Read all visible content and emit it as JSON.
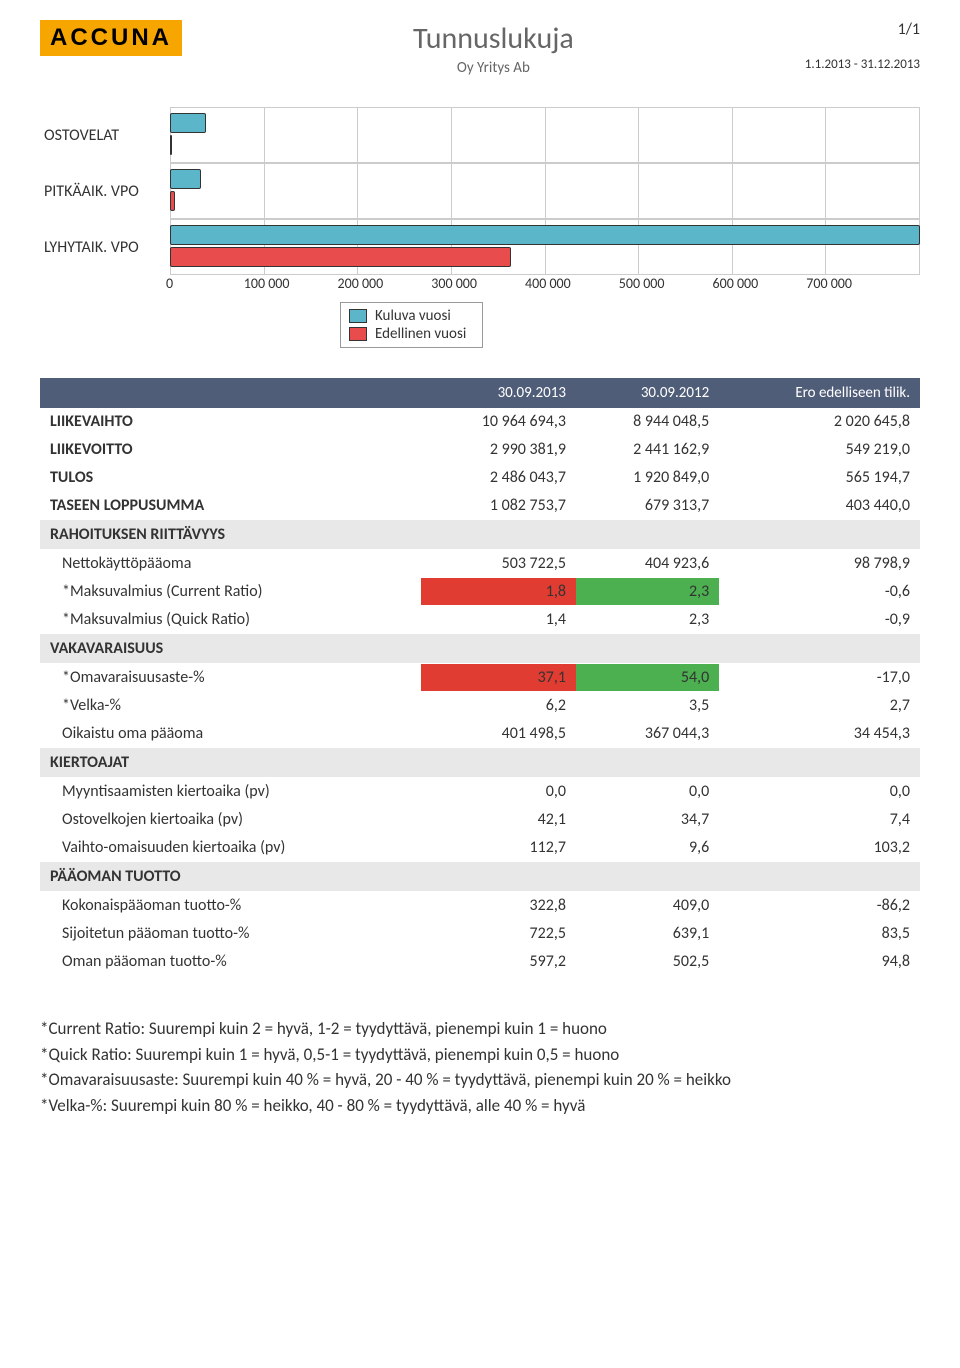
{
  "header": {
    "logo": "ACCUNA",
    "title": "Tunnuslukuja",
    "subtitle": "Oy Yritys Ab",
    "page": "1/1",
    "date_range": "1.1.2013 - 31.12.2013"
  },
  "chart": {
    "type": "bar",
    "categories": [
      "OSTOVELAT",
      "PITKÄAIK. VPO",
      "LYHYTAIK. VPO"
    ],
    "series": [
      {
        "name": "Kuluva vuosi",
        "color": "#5bb6c9",
        "values": [
          35000,
          30000,
          720000
        ]
      },
      {
        "name": "Edellinen vuosi",
        "color": "#e84c4c",
        "values": [
          0,
          5000,
          327000
        ]
      }
    ],
    "x_ticks": [
      "0",
      "100 000",
      "200 000",
      "300 000",
      "400 000",
      "500 000",
      "600 000",
      "700 000"
    ],
    "x_max": 720000,
    "grid_cells": 8,
    "bar_border": "#333333",
    "grid_color": "#cccccc"
  },
  "table": {
    "headers": [
      "",
      "30.09.2013",
      "30.09.2012",
      "Ero edelliseen tilik."
    ],
    "top_rows": [
      {
        "label": "LIIKEVAIHTO",
        "c1": "10 964 694,3",
        "c2": "8 944 048,5",
        "c3": "2 020 645,8"
      },
      {
        "label": "LIIKEVOITTO",
        "c1": "2 990 381,9",
        "c2": "2 441 162,9",
        "c3": "549 219,0"
      },
      {
        "label": "TULOS",
        "c1": "2 486 043,7",
        "c2": "1 920 849,0",
        "c3": "565 194,7"
      },
      {
        "label": "TASEEN LOPPUSUMMA",
        "c1": "1 082 753,7",
        "c2": "679 313,7",
        "c3": "403 440,0"
      }
    ],
    "sections": [
      {
        "title": "RAHOITUKSEN RIITTÄVYYS",
        "rows": [
          {
            "label": "Nettokäyttöpääoma",
            "c1": "503 722,5",
            "c2": "404 923,6",
            "c3": "98 798,9"
          },
          {
            "label": "*Maksuvalmius (Current Ratio)",
            "c1": "1,8",
            "c2": "2,3",
            "c3": "-0,6",
            "c1_color": "red",
            "c2_color": "green"
          },
          {
            "label": "*Maksuvalmius (Quick Ratio)",
            "c1": "1,4",
            "c2": "2,3",
            "c3": "-0,9"
          }
        ]
      },
      {
        "title": "VAKAVARAISUUS",
        "rows": [
          {
            "label": "*Omavaraisuusaste-%",
            "c1": "37,1",
            "c2": "54,0",
            "c3": "-17,0",
            "c1_color": "red",
            "c2_color": "green"
          },
          {
            "label": "*Velka-%",
            "c1": "6,2",
            "c2": "3,5",
            "c3": "2,7"
          },
          {
            "label": "Oikaistu oma pääoma",
            "c1": "401 498,5",
            "c2": "367 044,3",
            "c3": "34 454,3"
          }
        ]
      },
      {
        "title": "KIERTOAJAT",
        "rows": [
          {
            "label": "Myyntisaamisten kiertoaika (pv)",
            "c1": "0,0",
            "c2": "0,0",
            "c3": "0,0"
          },
          {
            "label": "Ostovelkojen kiertoaika (pv)",
            "c1": "42,1",
            "c2": "34,7",
            "c3": "7,4"
          },
          {
            "label": "Vaihto-omaisuuden kiertoaika (pv)",
            "c1": "112,7",
            "c2": "9,6",
            "c3": "103,2"
          }
        ]
      },
      {
        "title": "PÄÄOMAN TUOTTO",
        "rows": [
          {
            "label": "Kokonaispääoman tuotto-%",
            "c1": "322,8",
            "c2": "409,0",
            "c3": "-86,2"
          },
          {
            "label": "Sijoitetun pääoman tuotto-%",
            "c1": "722,5",
            "c2": "639,1",
            "c3": "83,5"
          },
          {
            "label": "Oman pääoman tuotto-%",
            "c1": "597,2",
            "c2": "502,5",
            "c3": "94,8"
          }
        ]
      }
    ]
  },
  "footnotes": [
    "*Current Ratio: Suurempi kuin 2 = hyvä, 1-2 = tyydyttävä, pienempi kuin 1 = huono",
    "*Quick Ratio: Suurempi kuin 1 = hyvä, 0,5-1 = tyydyttävä, pienempi kuin 0,5 = huono",
    "*Omavaraisuusaste: Suurempi kuin 40 % = hyvä, 20 - 40 % = tyydyttävä, pienempi kuin 20 % = heikko",
    "*Velka-%: Suurempi kuin 80 % = heikko, 40 - 80 % = tyydyttävä, alle 40 % = hyvä"
  ]
}
